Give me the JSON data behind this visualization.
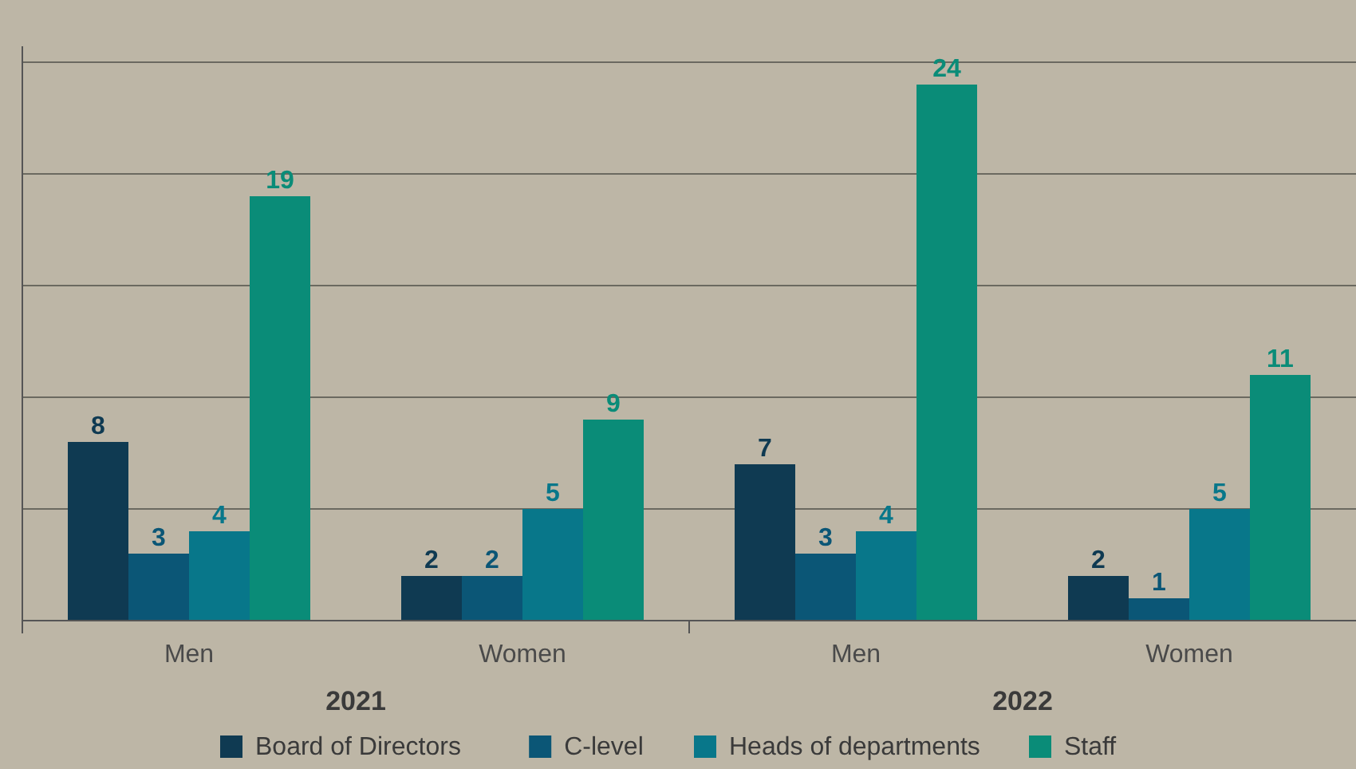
{
  "chart_data": {
    "type": "bar",
    "categories": [
      "Men",
      "Women",
      "Men",
      "Women"
    ],
    "series": [
      {
        "name": "Board of Directors",
        "color": "#0f3a52",
        "values": [
          8,
          2,
          7,
          2
        ]
      },
      {
        "name": "C-level",
        "color": "#0b5676",
        "values": [
          3,
          2,
          3,
          1
        ]
      },
      {
        "name": "Heads of departments",
        "color": "#08778a",
        "values": [
          4,
          5,
          4,
          5
        ]
      },
      {
        "name": "Staff",
        "color": "#0a8c78",
        "values": [
          19,
          9,
          24,
          11
        ]
      }
    ],
    "annotations": [
      "2021",
      "2022"
    ],
    "ylim": [
      0,
      25
    ],
    "yticks": [
      {
        "value": 0,
        "label": null
      },
      {
        "value": 5,
        "label": null
      },
      {
        "value": 10,
        "label": null
      },
      {
        "value": 15,
        "label": null
      },
      {
        "value": 20,
        "label": null
      },
      {
        "value": 25,
        "label": null
      }
    ],
    "tick_labels": "x",
    "grid": "y",
    "data_labels": true,
    "legend": "bottom"
  }
}
